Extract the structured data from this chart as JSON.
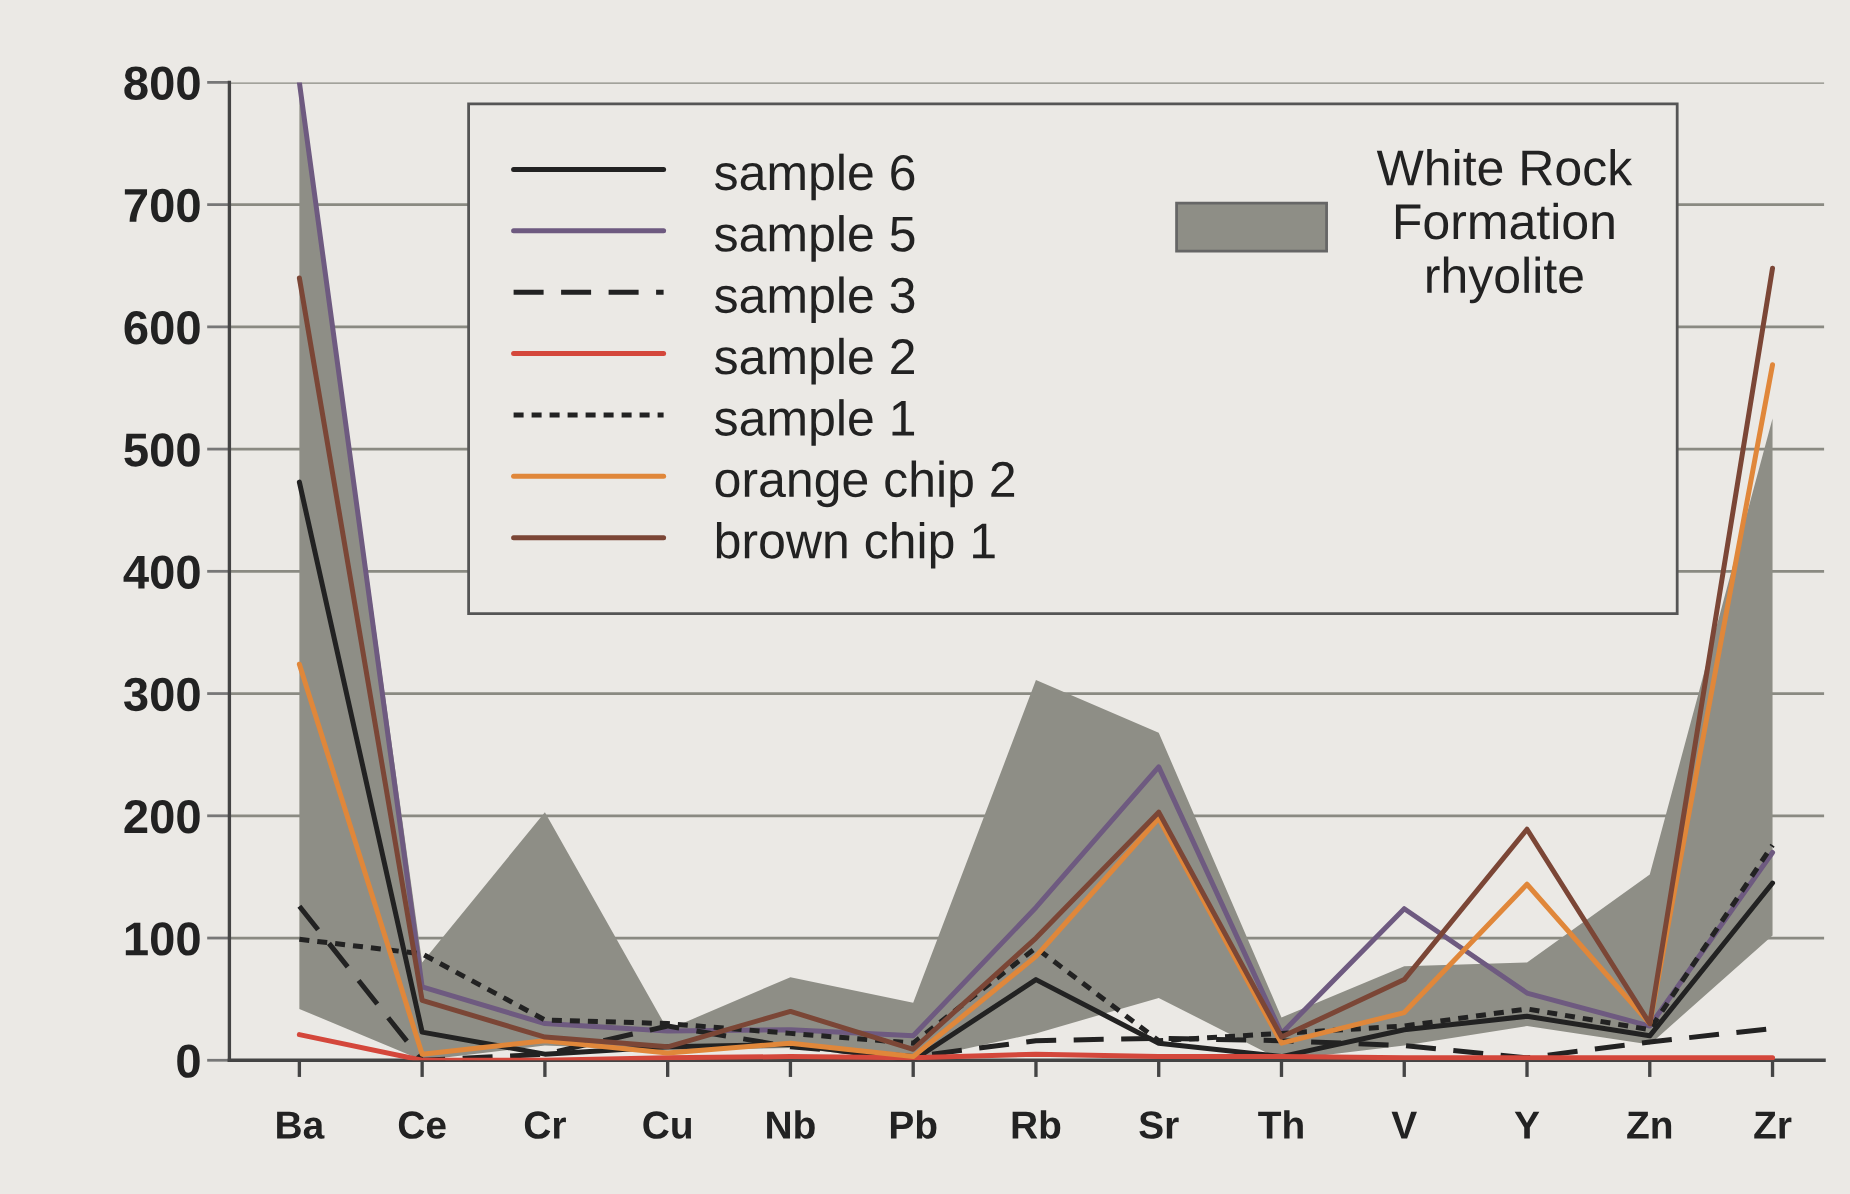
{
  "chart_data": {
    "type": "line",
    "categories": [
      "Ba",
      "Ce",
      "Cr",
      "Cu",
      "Nb",
      "Pb",
      "Rb",
      "Sr",
      "Th",
      "V",
      "Y",
      "Zn",
      "Zr"
    ],
    "ylim": [
      0,
      800
    ],
    "yticks": [
      0,
      100,
      200,
      300,
      400,
      500,
      600,
      700,
      800
    ],
    "grid": "y",
    "legend": "top left",
    "line_style": "solid",
    "series": [
      {
        "name": "sample 6",
        "color": "#222222",
        "values": [
          473,
          23,
          5,
          11,
          13,
          0,
          66,
          14,
          3,
          25,
          36,
          20,
          145
        ]
      },
      {
        "name": "sample 5",
        "color": "#6e5a80",
        "values": [
          800,
          60,
          30,
          24,
          25,
          20,
          125,
          240,
          22,
          124,
          55,
          28,
          170
        ]
      },
      {
        "name": "sample 3",
        "color": "#222222",
        "line_style": "dashed",
        "values": [
          126,
          0,
          5,
          28,
          11,
          3,
          16,
          18,
          16,
          12,
          2,
          15,
          26
        ]
      },
      {
        "name": "sample 2",
        "color": "#d4473b",
        "values": [
          21,
          0,
          0,
          2,
          3,
          2,
          5,
          3,
          3,
          2,
          2,
          2,
          2
        ]
      },
      {
        "name": "sample 1",
        "color": "#222222",
        "line_style": "dotted",
        "values": [
          99,
          87,
          33,
          30,
          22,
          14,
          92,
          16,
          22,
          28,
          42,
          25,
          176
        ]
      },
      {
        "name": "orange chip 2",
        "color": "#e0873a",
        "values": [
          324,
          5,
          16,
          6,
          14,
          3,
          85,
          198,
          14,
          39,
          144,
          30,
          569
        ]
      },
      {
        "name": "brown chip 1",
        "color": "#7b4636",
        "values": [
          640,
          49,
          19,
          11,
          40,
          9,
          100,
          203,
          19,
          66,
          189,
          30,
          648
        ]
      },
      {
        "name": "White Rock\nFormation\nrhyolite",
        "type": "area",
        "color": "#8e8e86",
        "values": [
          null,
          null,
          null,
          null,
          null,
          null,
          null,
          null,
          null,
          null,
          null,
          null,
          null
        ],
        "lower": [
          42,
          0,
          12,
          8,
          10,
          0,
          22,
          51,
          0,
          12,
          28,
          13,
          102
        ],
        "upper": [
          800,
          80,
          203,
          25,
          68,
          47,
          311,
          268,
          35,
          77,
          80,
          152,
          525
        ]
      }
    ]
  }
}
